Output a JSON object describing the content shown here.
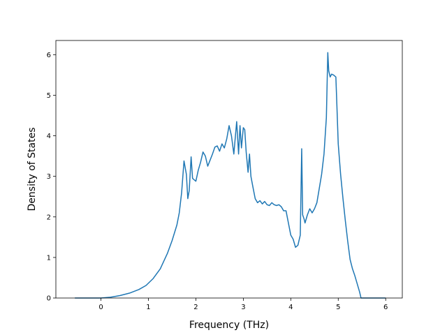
{
  "chart_data": {
    "type": "line",
    "title": "",
    "xlabel": "Frequency (THz)",
    "ylabel": "Density of States",
    "xlim": [
      -0.95,
      6.35
    ],
    "ylim": [
      0,
      6.35
    ],
    "grid": false,
    "legend": "none",
    "xticks": [
      0,
      1,
      2,
      3,
      4,
      5,
      6
    ],
    "yticks": [
      0,
      1,
      2,
      3,
      4,
      5,
      6
    ],
    "series": [
      {
        "color": "#1f77b4",
        "x": [
          -0.55,
          -0.3,
          0.0,
          0.2,
          0.4,
          0.6,
          0.8,
          0.95,
          1.1,
          1.25,
          1.4,
          1.5,
          1.6,
          1.65,
          1.7,
          1.75,
          1.8,
          1.83,
          1.86,
          1.9,
          1.93,
          2.0,
          2.05,
          2.1,
          2.15,
          2.2,
          2.25,
          2.3,
          2.35,
          2.4,
          2.45,
          2.5,
          2.55,
          2.6,
          2.65,
          2.7,
          2.75,
          2.8,
          2.83,
          2.86,
          2.9,
          2.93,
          2.96,
          3.0,
          3.03,
          3.06,
          3.1,
          3.13,
          3.16,
          3.2,
          3.25,
          3.3,
          3.35,
          3.4,
          3.45,
          3.5,
          3.55,
          3.6,
          3.65,
          3.7,
          3.75,
          3.8,
          3.85,
          3.9,
          3.95,
          4.0,
          4.05,
          4.1,
          4.15,
          4.2,
          4.23,
          4.25,
          4.28,
          4.3,
          4.35,
          4.4,
          4.45,
          4.5,
          4.55,
          4.6,
          4.65,
          4.7,
          4.75,
          4.78,
          4.8,
          4.83,
          4.86,
          4.9,
          4.95,
          4.97,
          5.0,
          5.05,
          5.1,
          5.15,
          5.2,
          5.25,
          5.3,
          5.35,
          5.4,
          5.45,
          5.48,
          5.52,
          5.6,
          5.8,
          6.0
        ],
        "values": [
          0.0,
          0.0,
          0.0,
          0.02,
          0.06,
          0.12,
          0.21,
          0.31,
          0.48,
          0.72,
          1.1,
          1.42,
          1.8,
          2.1,
          2.6,
          3.38,
          3.05,
          2.45,
          2.65,
          3.48,
          2.95,
          2.88,
          3.15,
          3.35,
          3.6,
          3.5,
          3.25,
          3.4,
          3.55,
          3.72,
          3.75,
          3.62,
          3.8,
          3.7,
          3.92,
          4.25,
          4.0,
          3.55,
          3.95,
          4.35,
          3.55,
          4.25,
          3.7,
          4.2,
          4.15,
          3.6,
          3.1,
          3.55,
          3.0,
          2.75,
          2.45,
          2.35,
          2.4,
          2.32,
          2.38,
          2.3,
          2.28,
          2.35,
          2.3,
          2.28,
          2.3,
          2.25,
          2.15,
          2.15,
          1.85,
          1.55,
          1.45,
          1.25,
          1.3,
          1.55,
          3.68,
          2.05,
          1.95,
          1.85,
          2.05,
          2.2,
          2.1,
          2.2,
          2.35,
          2.7,
          3.05,
          3.55,
          4.45,
          6.05,
          5.6,
          5.45,
          5.52,
          5.5,
          5.45,
          4.8,
          3.8,
          3.05,
          2.45,
          1.9,
          1.4,
          0.95,
          0.72,
          0.55,
          0.35,
          0.15,
          0.0,
          0.0,
          0.0,
          0.0,
          0.0
        ]
      }
    ]
  }
}
